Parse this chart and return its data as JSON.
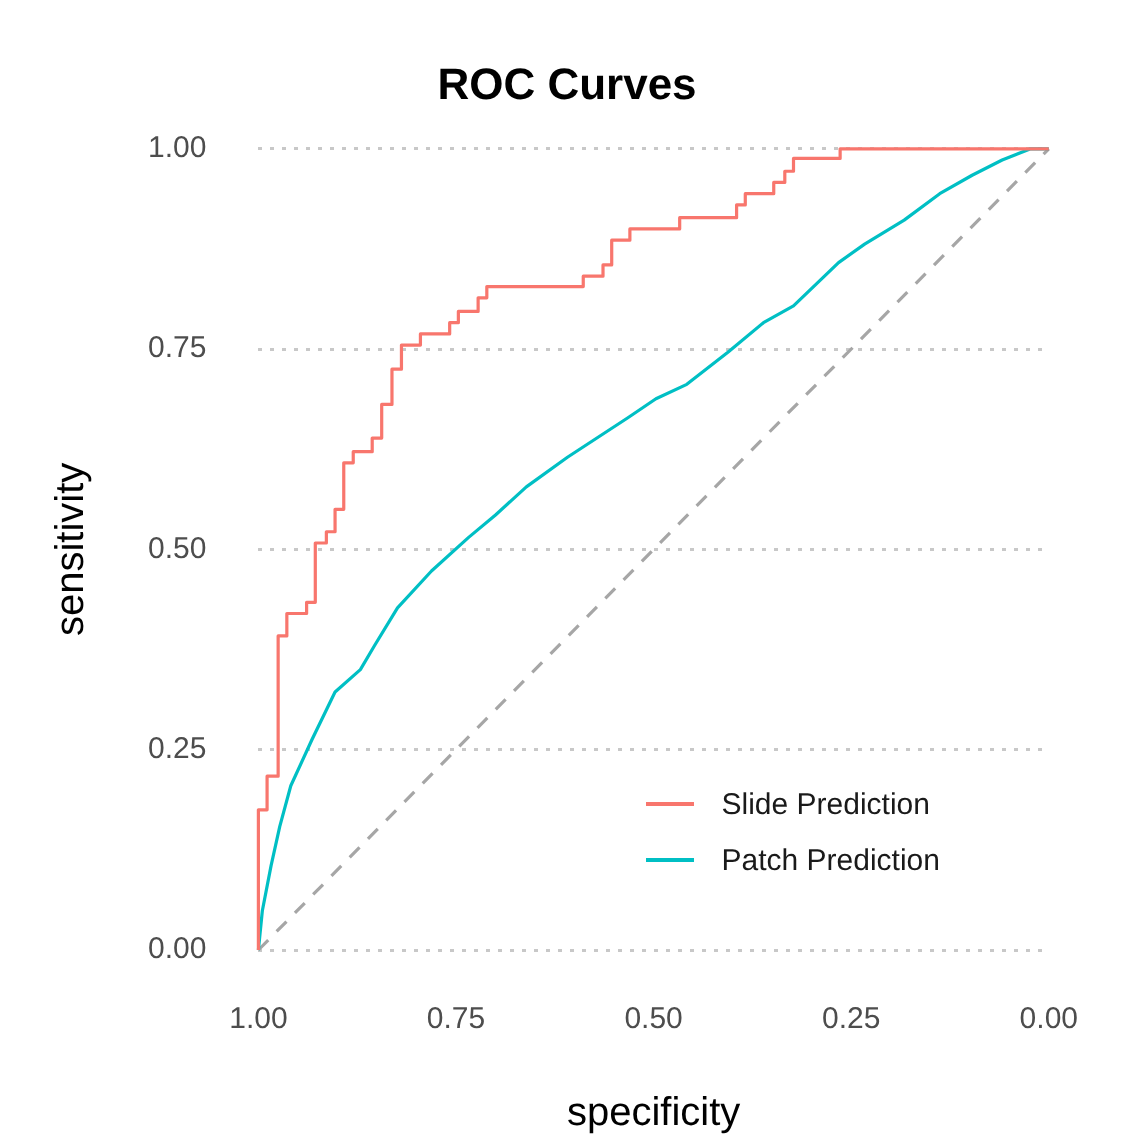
{
  "chart_data": {
    "type": "line",
    "title": "ROC Curves",
    "xlabel": "specificity",
    "ylabel": "sensitivity",
    "xlim": [
      1,
      0
    ],
    "xticks": [
      {
        "value": 1,
        "label": "1.00"
      },
      {
        "value": 0.75,
        "label": "0.75"
      },
      {
        "value": 0.5,
        "label": "0.50"
      },
      {
        "value": 0.25,
        "label": "0.25"
      },
      {
        "value": 0,
        "label": "0.00"
      }
    ],
    "ylim": [
      0,
      1
    ],
    "yticks": [
      {
        "value": 0,
        "label": "0.00"
      },
      {
        "value": 0.25,
        "label": "0.25"
      },
      {
        "value": 0.5,
        "label": "0.50"
      },
      {
        "value": 0.75,
        "label": "0.75"
      },
      {
        "value": 1,
        "label": "1.00"
      }
    ],
    "grid": "y",
    "legend": "bottom right",
    "marker": "none",
    "series": [
      {
        "name": "Slide Prediction",
        "type": "step",
        "color": "#f8766d",
        "x": [
          1.0,
          1.0,
          0.989,
          0.975,
          0.964,
          0.939,
          0.928,
          0.914,
          0.903,
          0.892,
          0.88,
          0.856,
          0.844,
          0.831,
          0.819,
          0.795,
          0.758,
          0.747,
          0.722,
          0.711,
          0.589,
          0.564,
          0.553,
          0.53,
          0.467,
          0.395,
          0.384,
          0.348,
          0.334,
          0.323,
          0.264,
          0.178,
          0.0
        ],
        "values": [
          0.0,
          0.1,
          0.175,
          0.217,
          0.392,
          0.42,
          0.434,
          0.508,
          0.522,
          0.55,
          0.608,
          0.622,
          0.639,
          0.681,
          0.725,
          0.755,
          0.769,
          0.783,
          0.797,
          0.814,
          0.828,
          0.841,
          0.855,
          0.886,
          0.9,
          0.914,
          0.93,
          0.944,
          0.958,
          0.972,
          0.988,
          1.0,
          1.0
        ]
      },
      {
        "name": "Patch Prediction",
        "type": "line",
        "color": "#00bfc4",
        "x": [
          1.0,
          0.995,
          0.984,
          0.973,
          0.959,
          0.932,
          0.903,
          0.871,
          0.853,
          0.824,
          0.781,
          0.734,
          0.7,
          0.661,
          0.609,
          0.533,
          0.497,
          0.458,
          0.406,
          0.361,
          0.323,
          0.266,
          0.233,
          0.183,
          0.138,
          0.097,
          0.059,
          0.023,
          0.0
        ],
        "values": [
          0.0,
          0.049,
          0.105,
          0.154,
          0.205,
          0.263,
          0.322,
          0.35,
          0.38,
          0.427,
          0.473,
          0.515,
          0.543,
          0.578,
          0.615,
          0.664,
          0.688,
          0.706,
          0.746,
          0.783,
          0.804,
          0.858,
          0.881,
          0.911,
          0.944,
          0.967,
          0.986,
          1.0,
          1.0
        ]
      },
      {
        "type": "line",
        "color": "#a6a6a6",
        "line_style": "dashed",
        "x": [
          1,
          0
        ],
        "values": [
          0,
          1
        ]
      }
    ]
  }
}
